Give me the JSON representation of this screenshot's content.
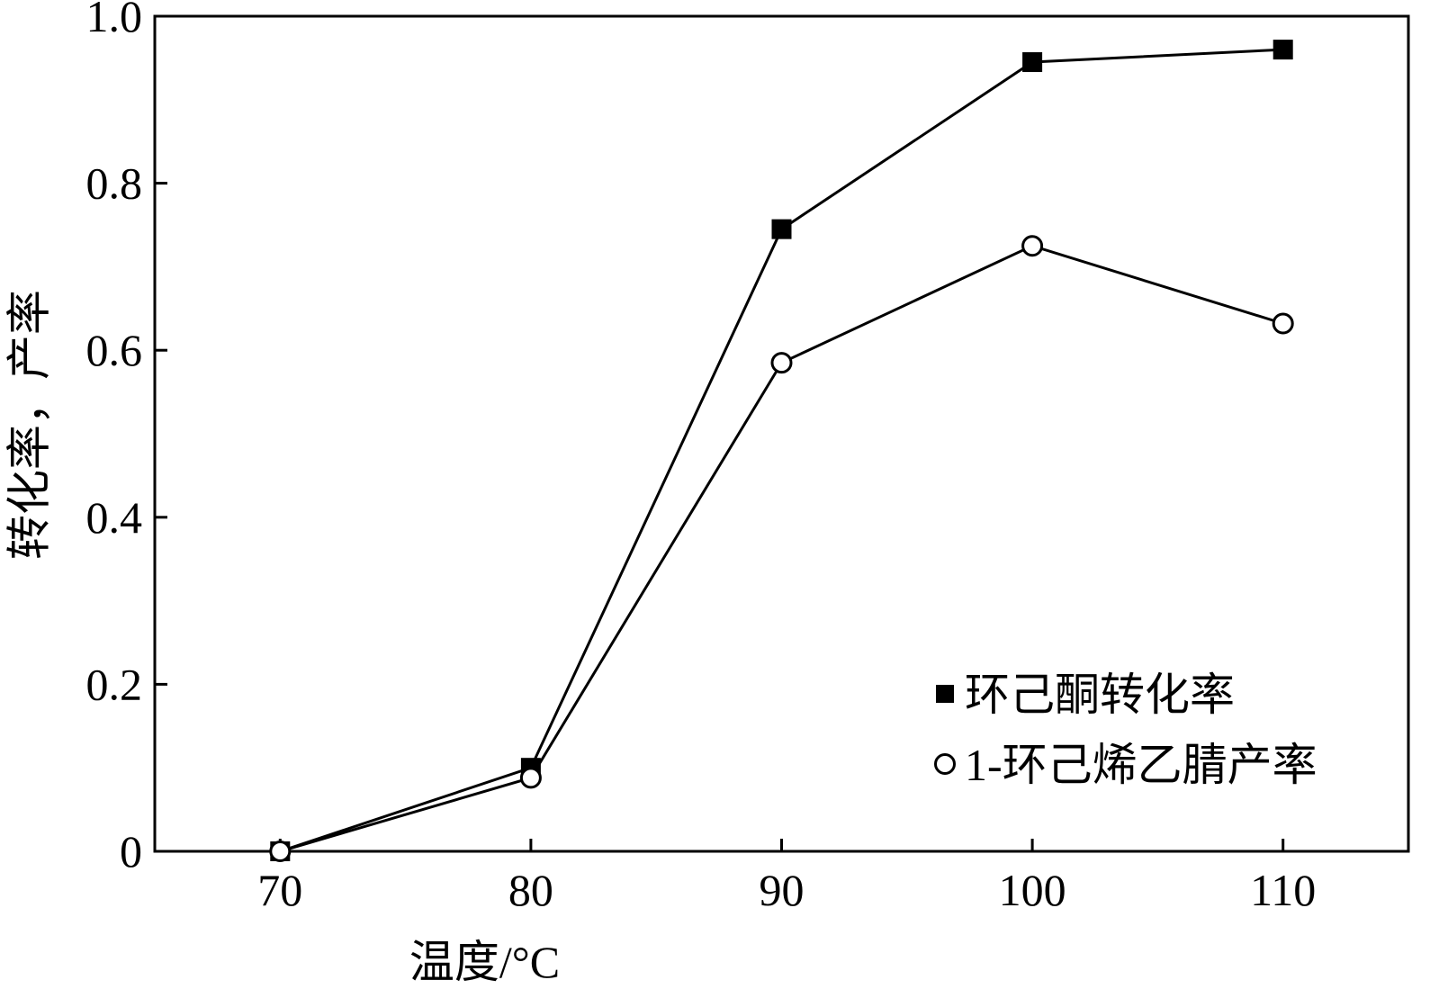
{
  "chart_data": {
    "type": "line",
    "title": "",
    "xlabel": "温度/°C",
    "ylabel": "转化率，产率",
    "x": [
      70,
      80,
      90,
      100,
      110
    ],
    "xlim": [
      65,
      115
    ],
    "ylim": [
      0,
      1.0
    ],
    "x_ticks": [
      "70",
      "80",
      "90",
      "100",
      "110"
    ],
    "y_ticks": [
      "0",
      "0.2",
      "0.4",
      "0.6",
      "0.8",
      "1.0"
    ],
    "grid": false,
    "legend_position": "bottom-right",
    "series": [
      {
        "name": "环己酮转化率",
        "marker": "filled-square",
        "color": "#000000",
        "values": [
          0.0,
          0.1,
          0.745,
          0.945,
          0.96
        ]
      },
      {
        "name": "1-环己烯乙腈产率",
        "marker": "open-circle",
        "color": "#000000",
        "values": [
          0.0,
          0.088,
          0.585,
          0.725,
          0.632
        ]
      }
    ]
  }
}
